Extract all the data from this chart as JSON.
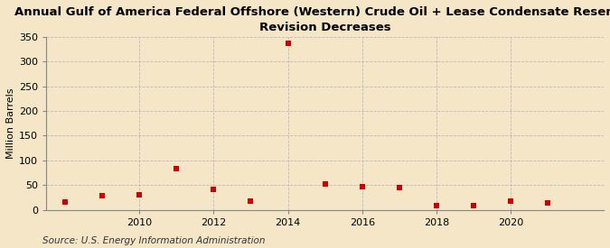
{
  "title": "Annual Gulf of America Federal Offshore (Western) Crude Oil + Lease Condensate Reserves\nRevision Decreases",
  "ylabel": "Million Barrels",
  "source": "Source: U.S. Energy Information Administration",
  "background_color": "#f5e6c8",
  "plot_background_color": "#f5e6c8",
  "marker_color": "#cc0000",
  "marker": "s",
  "marker_size": 4,
  "grid_color": "#bbbbbb",
  "years": [
    2008,
    2009,
    2010,
    2011,
    2012,
    2013,
    2014,
    2015,
    2016,
    2017,
    2018,
    2019,
    2020,
    2021
  ],
  "values": [
    15,
    28,
    30,
    83,
    42,
    18,
    337,
    52,
    47,
    45,
    8,
    8,
    18,
    13
  ],
  "ylim": [
    0,
    350
  ],
  "yticks": [
    0,
    50,
    100,
    150,
    200,
    250,
    300,
    350
  ],
  "xticks": [
    2010,
    2012,
    2014,
    2016,
    2018,
    2020
  ],
  "xlim": [
    2007.5,
    2022.5
  ],
  "title_fontsize": 9.5,
  "axis_fontsize": 8,
  "source_fontsize": 7.5
}
